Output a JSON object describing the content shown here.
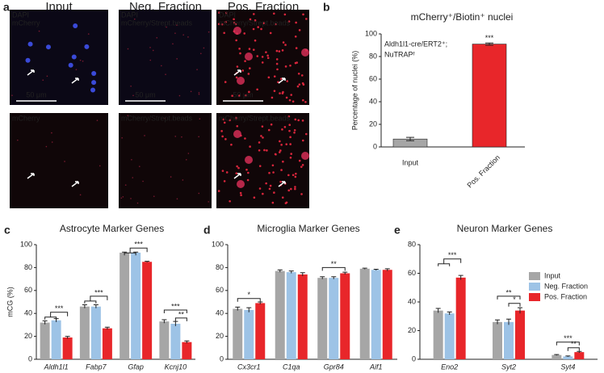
{
  "microscopy": {
    "panel": "a",
    "columns": [
      "Input",
      "Neg. Fraction",
      "Pos. Fraction"
    ],
    "top_labels": [
      [
        "DAPI",
        "mCherry"
      ],
      [
        "DAPI",
        "mCherry/Strept.beads"
      ],
      [
        "DAPI",
        "mCherry/Strept.beads"
      ]
    ],
    "bottom_labels": [
      "mCherry",
      "mCherry/Strept.beads",
      "mCherry/Strept.beads"
    ],
    "scale_bar": "50 μm"
  },
  "chart_data": [
    {
      "type": "bar",
      "panel": "b",
      "title": "mCherry⁺/Biotin⁺ nuclei",
      "annotation": [
        "Aldh1l1-cre/ERT2⁺;",
        "NuTRAPᶠ"
      ],
      "ylabel": "Percentage of nuclei (%)",
      "categories": [
        "Input",
        "Pos. Fraction"
      ],
      "values": [
        7,
        91
      ],
      "errors": [
        1.5,
        1
      ],
      "colors": [
        "#a6a6a6",
        "#e8262a"
      ],
      "significance": [
        "***"
      ],
      "ylim": [
        0,
        100
      ],
      "yticks": [
        0,
        20,
        40,
        60,
        80,
        100
      ]
    },
    {
      "type": "grouped_bar",
      "panel": "c",
      "title": "Astrocyte Marker Genes",
      "ylabel": "mCG (%)",
      "categories": [
        "Aldh1l1",
        "Fabp7",
        "Gfap",
        "Kcnj10"
      ],
      "series": [
        {
          "name": "Input",
          "color": "#a6a6a6",
          "values": [
            32,
            46,
            93,
            33
          ],
          "errors": [
            1.5,
            1.5,
            0.5,
            1.5
          ]
        },
        {
          "name": "Neg. Fraction",
          "color": "#9dc3e6",
          "values": [
            34,
            46,
            93,
            31
          ],
          "errors": [
            1.5,
            1.5,
            0.5,
            2
          ]
        },
        {
          "name": "Pos. Fraction",
          "color": "#e8262a",
          "values": [
            19,
            27,
            85,
            15
          ],
          "errors": [
            1,
            1,
            0.5,
            1
          ]
        }
      ],
      "significance": [
        "***",
        "***",
        "***",
        "***",
        "**"
      ],
      "ylim": [
        0,
        100
      ],
      "yticks": [
        0,
        20,
        40,
        60,
        80,
        100
      ]
    },
    {
      "type": "grouped_bar",
      "panel": "d",
      "title": "Microglia Marker Genes",
      "categories": [
        "Cx3cr1",
        "C1qa",
        "Gpr84",
        "Aif1"
      ],
      "series": [
        {
          "name": "Input",
          "color": "#a6a6a6",
          "values": [
            44,
            77,
            71,
            79
          ],
          "errors": [
            1.5,
            1,
            1,
            0.5
          ]
        },
        {
          "name": "Neg. Fraction",
          "color": "#9dc3e6",
          "values": [
            43,
            76,
            71,
            78
          ],
          "errors": [
            2,
            1,
            1,
            0.5
          ]
        },
        {
          "name": "Pos. Fraction",
          "color": "#e8262a",
          "values": [
            49,
            74,
            75,
            78
          ],
          "errors": [
            1,
            1.5,
            1,
            1
          ]
        }
      ],
      "significance": [
        "*",
        "**"
      ],
      "ylim": [
        0,
        100
      ],
      "yticks": [
        0,
        20,
        40,
        60,
        80,
        100
      ]
    },
    {
      "type": "grouped_bar",
      "panel": "e",
      "title": "Neuron Marker Genes",
      "legend": "upper right",
      "categories": [
        "Eno2",
        "Syt2",
        "Syt4"
      ],
      "series": [
        {
          "name": "Input",
          "color": "#a6a6a6",
          "values": [
            34,
            26,
            3
          ],
          "errors": [
            1.5,
            1.5,
            0.3
          ]
        },
        {
          "name": "Neg. Fraction",
          "color": "#9dc3e6",
          "values": [
            32,
            26,
            2
          ],
          "errors": [
            1,
            2,
            0.3
          ]
        },
        {
          "name": "Pos. Fraction",
          "color": "#e8262a",
          "values": [
            57,
            34,
            5
          ],
          "errors": [
            1.5,
            2,
            0.5
          ]
        }
      ],
      "significance": [
        "***",
        "**",
        "*",
        "***",
        "**"
      ],
      "ylim": [
        0,
        80
      ],
      "yticks": [
        0,
        20,
        40,
        60,
        80
      ]
    }
  ]
}
